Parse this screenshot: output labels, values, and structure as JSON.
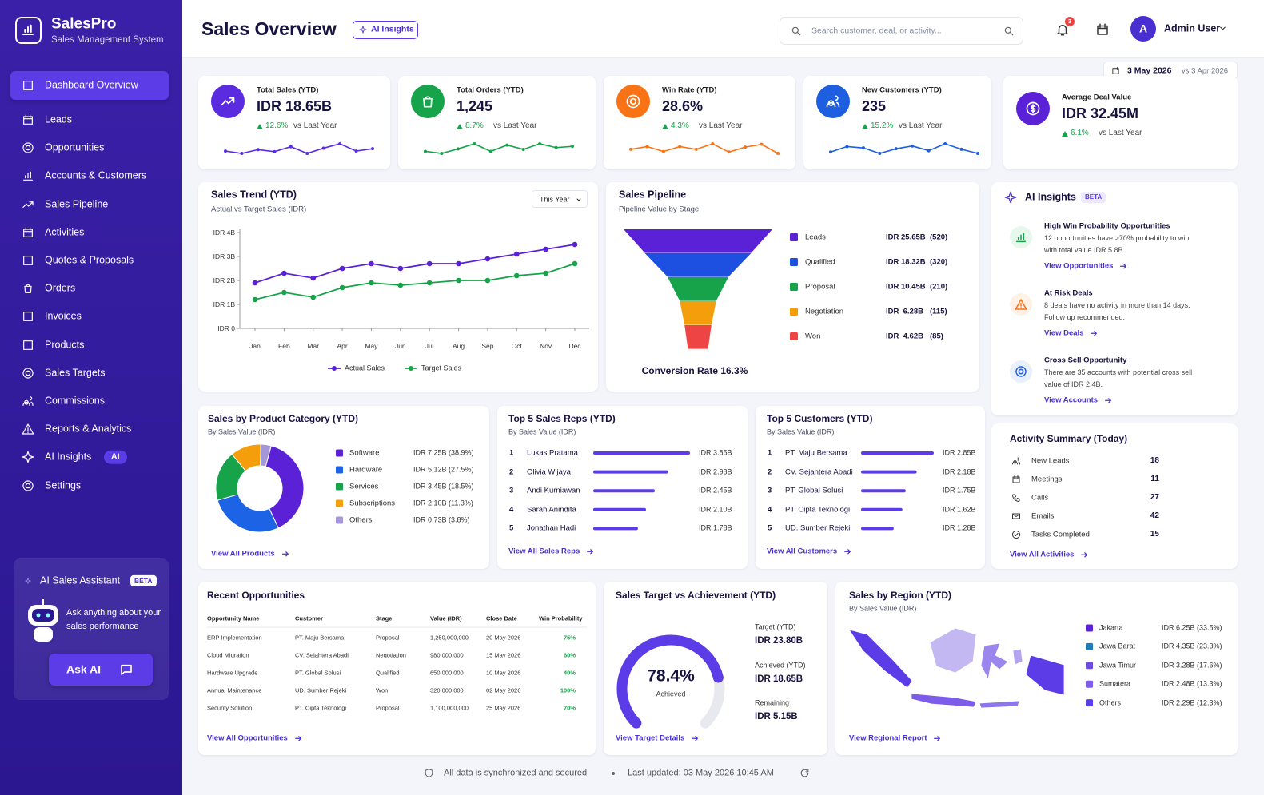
{
  "brand": {
    "name": "SalesPro",
    "tagline": "Sales Management System"
  },
  "nav": [
    {
      "label": "Dashboard Overview"
    },
    {
      "label": "Leads"
    },
    {
      "label": "Opportunities"
    },
    {
      "label": "Accounts & Customers"
    },
    {
      "label": "Sales Pipeline"
    },
    {
      "label": "Activities"
    },
    {
      "label": "Quotes & Proposals"
    },
    {
      "label": "Orders"
    },
    {
      "label": "Invoices"
    },
    {
      "label": "Products"
    },
    {
      "label": "Sales Targets"
    },
    {
      "label": "Commissions"
    },
    {
      "label": "Reports & Analytics"
    },
    {
      "label": "AI Insights",
      "badge": "AI"
    },
    {
      "label": "Settings"
    }
  ],
  "assistant": {
    "title": "AI Sales Assistant",
    "badge": "BETA",
    "text": "Ask anything about your sales performance",
    "button": "Ask AI"
  },
  "header": {
    "title": "Sales Overview",
    "ai_button": "AI Insights",
    "search_placeholder": "Search customer, deal, or activity...",
    "notifications": 3,
    "avatar": "A",
    "user": "Admin User"
  },
  "date": {
    "current": "3 May 2026",
    "compare": "vs 3 Apr 2026"
  },
  "kpis": [
    {
      "title": "Total Sales (YTD)",
      "value": "IDR 18.65B",
      "change": "12.6%",
      "compare": "vs Last Year",
      "color": "#5b2be0",
      "trend": [
        5,
        4.2,
        5.5,
        4.8,
        6.5,
        4.2,
        6,
        7.5,
        5,
        5.8
      ]
    },
    {
      "title": "Total Orders (YTD)",
      "value": "1,245",
      "change": "8.7%",
      "compare": "vs Last Year",
      "color": "#16a34a",
      "trend": [
        4,
        3.2,
        5,
        7,
        4,
        6.5,
        4.8,
        7,
        5.5,
        6
      ]
    },
    {
      "title": "Win Rate (YTD)",
      "value": "28.6%",
      "change": "4.3%",
      "compare": "vs Last Year",
      "color": "#f97316",
      "trend": [
        5,
        6,
        4.2,
        6,
        5,
        7,
        4,
        5.8,
        6.8,
        3.5
      ]
    },
    {
      "title": "New Customers (YTD)",
      "value": "235",
      "change": "15.2%",
      "compare": "vs Last Year",
      "color": "#1d5fe0",
      "trend": [
        4,
        6,
        5.5,
        3.5,
        5.2,
        6.2,
        4.5,
        7,
        5,
        3.5
      ]
    },
    {
      "title": "Average Deal Value",
      "value": "IDR 32.45M",
      "change": "6.1%",
      "compare": "vs Last Year",
      "color": "#5b21d6"
    }
  ],
  "sales_trend": {
    "title": "Sales Trend (YTD)",
    "subtitle": "Actual vs Target Sales (IDR)",
    "filter": "This Year",
    "categories": [
      "Jan",
      "Feb",
      "Mar",
      "Apr",
      "May",
      "Jun",
      "Jul",
      "Aug",
      "Sep",
      "Oct",
      "Nov",
      "Dec"
    ],
    "ylim": [
      0,
      4
    ],
    "yticks": [
      {
        "value": 0,
        "label": "IDR 0"
      },
      {
        "value": 1,
        "label": "IDR 1B"
      },
      {
        "value": 2,
        "label": "IDR 2B"
      },
      {
        "value": 3,
        "label": "IDR 3B"
      },
      {
        "value": 4,
        "label": "IDR 4B"
      }
    ],
    "series": [
      {
        "name": "Actual Sales",
        "color": "#5b21d6",
        "values": [
          1.9,
          2.3,
          2.1,
          2.5,
          2.7,
          2.5,
          2.7,
          2.7,
          2.9,
          3.1,
          3.3,
          3.5
        ]
      },
      {
        "name": "Target Sales",
        "color": "#16a34a",
        "values": [
          1.2,
          1.5,
          1.3,
          1.7,
          1.9,
          1.8,
          1.9,
          2.0,
          2.0,
          2.2,
          2.3,
          2.7
        ]
      }
    ]
  },
  "pipeline": {
    "title": "Sales Pipeline",
    "subtitle": "Pipeline Value by Stage",
    "stages": [
      {
        "name": "Leads",
        "color": "#5b21d6",
        "value": 25.65,
        "label": "IDR 25.65B",
        "count": "(520)"
      },
      {
        "name": "Qualified",
        "color": "#1d4fe0",
        "value": 18.32,
        "label": "IDR 18.32B",
        "count": "(320)"
      },
      {
        "name": "Proposal",
        "color": "#16a34a",
        "value": 10.45,
        "label": "IDR 10.45B",
        "count": "(210)"
      },
      {
        "name": "Negotiation",
        "color": "#f59e0b",
        "value": 6.28,
        "label": "IDR  6.28B",
        "count": "(115)"
      },
      {
        "name": "Won",
        "color": "#ef4444",
        "value": 4.62,
        "label": "IDR  4.62B",
        "count": "(85)"
      }
    ],
    "conversion": "Conversion Rate 16.3%"
  },
  "ai_insights": {
    "title": "AI Insights",
    "badge": "BETA",
    "items": [
      {
        "title": "High Win Probability Opportunities",
        "text": "12 opportunities have >70% probability to win with total value IDR 5.8B.",
        "link": "View Opportunities"
      },
      {
        "title": "At Risk Deals",
        "text": "8 deals have no activity in more than 14 days. Follow up recommended.",
        "link": "View Deals"
      },
      {
        "title": "Cross Sell Opportunity",
        "text": "There are 35 accounts with potential cross sell value of IDR 2.4B.",
        "link": "View Accounts"
      }
    ]
  },
  "product_sales": {
    "title": "Sales by Product Category (YTD)",
    "subtitle": "By Sales Value (IDR)",
    "items": [
      {
        "name": "Software",
        "color": "#5b21d6",
        "value": 38.9,
        "label": "IDR 7.25B (38.9%)"
      },
      {
        "name": "Hardware",
        "color": "#1d63e6",
        "value": 27.5,
        "label": "IDR 5.12B (27.5%)"
      },
      {
        "name": "Services",
        "color": "#16a34a",
        "value": 18.5,
        "label": "IDR 3.45B (18.5%)"
      },
      {
        "name": "Subscriptions",
        "color": "#f59e0b",
        "value": 11.3,
        "label": "IDR 2.10B (11.3%)"
      },
      {
        "name": "Others",
        "color": "#a596d8",
        "value": 3.8,
        "label": "IDR 0.73B (3.8%)"
      }
    ],
    "link": "View All Products"
  },
  "top_reps": {
    "title": "Top 5 Sales Reps (YTD)",
    "subtitle": "By Sales Value (IDR)",
    "items": [
      {
        "rank": 1,
        "name": "Lukas Pratama",
        "value": 3.85,
        "label": "IDR 3.85B"
      },
      {
        "rank": 2,
        "name": "Olivia Wijaya",
        "value": 2.98,
        "label": "IDR 2.98B"
      },
      {
        "rank": 3,
        "name": "Andi Kurniawan",
        "value": 2.45,
        "label": "IDR 2.45B"
      },
      {
        "rank": 4,
        "name": "Sarah Anindita",
        "value": 2.1,
        "label": "IDR 2.10B"
      },
      {
        "rank": 5,
        "name": "Jonathan Hadi",
        "value": 1.78,
        "label": "IDR 1.78B"
      }
    ],
    "link": "View All Sales Reps"
  },
  "top_customers": {
    "title": "Top 5 Customers (YTD)",
    "subtitle": "By Sales Value (IDR)",
    "items": [
      {
        "rank": 1,
        "name": "PT. Maju Bersama",
        "value": 2.85,
        "label": "IDR 2.85B"
      },
      {
        "rank": 2,
        "name": "CV. Sejahtera Abadi",
        "value": 2.18,
        "label": "IDR 2.18B"
      },
      {
        "rank": 3,
        "name": "PT. Global Solusi",
        "value": 1.75,
        "label": "IDR 1.75B"
      },
      {
        "rank": 4,
        "name": "PT. Cipta Teknologi",
        "value": 1.62,
        "label": "IDR 1.62B"
      },
      {
        "rank": 5,
        "name": "UD. Sumber Rejeki",
        "value": 1.28,
        "label": "IDR 1.28B"
      }
    ],
    "link": "View All Customers"
  },
  "activity": {
    "title": "Activity Summary (Today)",
    "items": [
      {
        "name": "New Leads",
        "count": 18
      },
      {
        "name": "Meetings",
        "count": 11
      },
      {
        "name": "Calls",
        "count": 27
      },
      {
        "name": "Emails",
        "count": 42
      },
      {
        "name": "Tasks Completed",
        "count": 15
      }
    ],
    "link": "View All Activities"
  },
  "recent_opportunities": {
    "title": "Recent Opportunities",
    "columns": [
      "Opportunity Name",
      "Customer",
      "Stage",
      "Value (IDR)",
      "Close Date",
      "Win Probability"
    ],
    "rows": [
      [
        "ERP Implementation",
        "PT. Maju Bersama",
        "Proposal",
        "1,250,000,000",
        "20 May 2026",
        "75%"
      ],
      [
        "Cloud Migration",
        "CV. Sejahtera Abadi",
        "Negotiation",
        "980,000,000",
        "15 May 2026",
        "60%"
      ],
      [
        "Hardware Upgrade",
        "PT. Global Solusi",
        "Qualified",
        "650,000,000",
        "10 May 2026",
        "40%"
      ],
      [
        "Annual Maintenance",
        "UD. Sumber Rejeki",
        "Won",
        "320,000,000",
        "02 May 2026",
        "100%"
      ],
      [
        "Security Solution",
        "PT. Cipta Teknologi",
        "Proposal",
        "1,100,000,000",
        "25 May 2026",
        "70%"
      ]
    ],
    "link": "View All Opportunities"
  },
  "target": {
    "title": "Sales Target vs Achievement (YTD)",
    "range": [
      0,
      100
    ],
    "value": 78.4,
    "label": "78.4%",
    "caption": "Achieved",
    "stats": [
      {
        "label": "Target (YTD)",
        "value": "IDR 23.80B"
      },
      {
        "label": "Achieved (YTD)",
        "value": "IDR 18.65B"
      },
      {
        "label": "Remaining",
        "value": "IDR 5.15B"
      }
    ],
    "link": "View Target Details"
  },
  "region": {
    "title": "Sales by Region (YTD)",
    "subtitle": "By Sales Value (IDR)",
    "items": [
      {
        "name": "Jakarta",
        "color": "#5b21d6",
        "label": "IDR 6.25B (33.5%)"
      },
      {
        "name": "Jawa Barat",
        "color": "#1e7fb8",
        "label": "IDR 4.35B (23.3%)"
      },
      {
        "name": "Jawa Timur",
        "color": "#6d4ae0",
        "label": "IDR 3.28B (17.6%)"
      },
      {
        "name": "Sumatera",
        "color": "#7c5ce8",
        "label": "IDR 2.48B (13.3%)"
      },
      {
        "name": "Others",
        "color": "#5b3ce6",
        "label": "IDR 2.29B (12.3%)"
      }
    ],
    "link": "View Regional Report"
  },
  "footer": {
    "secure": "All data is synchronized and secured",
    "updated": "Last updated: 03 May 2026 10:45 AM"
  }
}
